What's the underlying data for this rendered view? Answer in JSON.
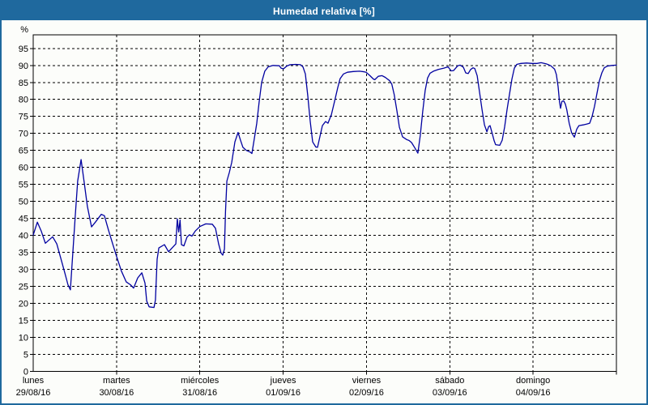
{
  "window": {
    "title": "Humedad relativa [%]"
  },
  "colors": {
    "titlebar_bg": "#1f699e",
    "window_border": "#1f699e",
    "line": "#0000a0",
    "grid": "#000000",
    "axis": "#000000",
    "page_bg": "#fcfdfa",
    "text": "#000000"
  },
  "chart_data": {
    "type": "line",
    "title": "Humedad relativa [%]",
    "ylabel": "%",
    "xlabel": "",
    "grid": true,
    "legend": null,
    "ylim": [
      0,
      99
    ],
    "xlim_hours": [
      0,
      168
    ],
    "yticks": [
      0,
      5,
      10,
      15,
      20,
      25,
      30,
      35,
      40,
      45,
      50,
      55,
      60,
      65,
      70,
      75,
      80,
      85,
      90,
      95
    ],
    "days": [
      {
        "name": "lunes",
        "date": "29/08/16"
      },
      {
        "name": "martes",
        "date": "30/08/16"
      },
      {
        "name": "miércoles",
        "date": "31/08/16"
      },
      {
        "name": "jueves",
        "date": "01/09/16"
      },
      {
        "name": "viernes",
        "date": "02/09/16"
      },
      {
        "name": "sábado",
        "date": "03/09/16"
      },
      {
        "name": "domingo",
        "date": "04/09/16"
      }
    ],
    "series": [
      {
        "name": "Humedad relativa",
        "color": "#0000a0",
        "x_unit": "hours from lunes 29/08/16 00:00",
        "points": [
          [
            0,
            40.1
          ],
          [
            1.2,
            43.9
          ],
          [
            2.3,
            41.3
          ],
          [
            3.5,
            37.7
          ],
          [
            5.6,
            39.6
          ],
          [
            6.8,
            37.5
          ],
          [
            7.9,
            33.4
          ],
          [
            9.1,
            29
          ],
          [
            10,
            25.5
          ],
          [
            10.7,
            24
          ],
          [
            12.1,
            45.7
          ],
          [
            12.8,
            56
          ],
          [
            13.8,
            62.3
          ],
          [
            14.7,
            55.5
          ],
          [
            15.6,
            48.5
          ],
          [
            16.8,
            42.5
          ],
          [
            18,
            44
          ],
          [
            19.6,
            46.2
          ],
          [
            20.5,
            45.8
          ],
          [
            21.7,
            41.5
          ],
          [
            22.9,
            37.5
          ],
          [
            24,
            33.8
          ],
          [
            25.4,
            29.5
          ],
          [
            26.8,
            26.3
          ],
          [
            28,
            25.5
          ],
          [
            28.9,
            24.5
          ],
          [
            30.1,
            27.5
          ],
          [
            31.3,
            29
          ],
          [
            32.2,
            26
          ],
          [
            32.7,
            20.7
          ],
          [
            33.4,
            19
          ],
          [
            34.8,
            18.8
          ],
          [
            35.2,
            21
          ],
          [
            35.7,
            33
          ],
          [
            36.2,
            36.3
          ],
          [
            37.8,
            37.3
          ],
          [
            39,
            35.2
          ],
          [
            39.9,
            36.2
          ],
          [
            41.1,
            37.5
          ],
          [
            41.5,
            44.9
          ],
          [
            41.9,
            41
          ],
          [
            42.3,
            44.5
          ],
          [
            42.7,
            37.3
          ],
          [
            43.4,
            36.9
          ],
          [
            44.3,
            39.5
          ],
          [
            45,
            40.2
          ],
          [
            45.7,
            39.8
          ],
          [
            46.7,
            41.3
          ],
          [
            48,
            42.6
          ],
          [
            49.7,
            43.4
          ],
          [
            51.6,
            43.3
          ],
          [
            52.5,
            42.1
          ],
          [
            53.4,
            37.5
          ],
          [
            54.1,
            34.8
          ],
          [
            54.6,
            34.2
          ],
          [
            55.1,
            36
          ],
          [
            55.4,
            47
          ],
          [
            55.8,
            56
          ],
          [
            56.5,
            58.5
          ],
          [
            57.2,
            61.5
          ],
          [
            58.1,
            67.5
          ],
          [
            59,
            70.3
          ],
          [
            59.7,
            68
          ],
          [
            60.4,
            65.9
          ],
          [
            61.4,
            65
          ],
          [
            62.5,
            64.5
          ],
          [
            63,
            64.1
          ],
          [
            63.7,
            68.5
          ],
          [
            64.4,
            73
          ],
          [
            65.1,
            79.4
          ],
          [
            65.8,
            85
          ],
          [
            66.7,
            88.3
          ],
          [
            67.7,
            89.6
          ],
          [
            69.1,
            90
          ],
          [
            70.9,
            89.9
          ],
          [
            71.4,
            89.2
          ],
          [
            72.1,
            89
          ],
          [
            73,
            89.8
          ],
          [
            74,
            90.2
          ],
          [
            75.6,
            90.3
          ],
          [
            77,
            90.2
          ],
          [
            77.7,
            89.6
          ],
          [
            78.4,
            87.5
          ],
          [
            79.1,
            81
          ],
          [
            79.8,
            73.5
          ],
          [
            80.5,
            67.5
          ],
          [
            81.4,
            66
          ],
          [
            81.9,
            65.9
          ],
          [
            83.3,
            72.3
          ],
          [
            84.2,
            73.5
          ],
          [
            84.9,
            73
          ],
          [
            85.9,
            75.5
          ],
          [
            86.8,
            79.4
          ],
          [
            87.7,
            83.4
          ],
          [
            88.4,
            86.1
          ],
          [
            89.4,
            87.5
          ],
          [
            90.5,
            88
          ],
          [
            92.2,
            88.2
          ],
          [
            94,
            88.3
          ],
          [
            95.4,
            88.1
          ],
          [
            95.9,
            88
          ],
          [
            97,
            87
          ],
          [
            98,
            86
          ],
          [
            98.4,
            85.8
          ],
          [
            99.4,
            86.8
          ],
          [
            100.5,
            87
          ],
          [
            101.4,
            86.5
          ],
          [
            102.7,
            85.5
          ],
          [
            103.3,
            84.5
          ],
          [
            104,
            81.4
          ],
          [
            104.8,
            76.5
          ],
          [
            105.5,
            71.8
          ],
          [
            106.4,
            69
          ],
          [
            107.6,
            68.2
          ],
          [
            108.3,
            67.9
          ],
          [
            109,
            67.3
          ],
          [
            109.9,
            65.8
          ],
          [
            110.8,
            64.2
          ],
          [
            111.5,
            69.5
          ],
          [
            112.2,
            76.5
          ],
          [
            112.9,
            82.6
          ],
          [
            113.6,
            86.3
          ],
          [
            114.3,
            87.7
          ],
          [
            115.3,
            88.3
          ],
          [
            116.7,
            88.8
          ],
          [
            118.3,
            89.2
          ],
          [
            119.5,
            89.6
          ],
          [
            120.4,
            88.4
          ],
          [
            121.1,
            88.5
          ],
          [
            122.3,
            89.9
          ],
          [
            123,
            90.1
          ],
          [
            123.9,
            89.5
          ],
          [
            124.6,
            87.8
          ],
          [
            125.3,
            87.6
          ],
          [
            126,
            88.8
          ],
          [
            126.7,
            89.3
          ],
          [
            127.2,
            89.1
          ],
          [
            127.9,
            87
          ],
          [
            128.6,
            82
          ],
          [
            129.3,
            77
          ],
          [
            130,
            72.5
          ],
          [
            130.7,
            70.5
          ],
          [
            131.2,
            72
          ],
          [
            131.6,
            72.3
          ],
          [
            132.1,
            70.5
          ],
          [
            132.8,
            67.8
          ],
          [
            133.2,
            66.7
          ],
          [
            134.4,
            66.5
          ],
          [
            135.1,
            68
          ],
          [
            135.8,
            71.9
          ],
          [
            136.5,
            77
          ],
          [
            137.2,
            81.5
          ],
          [
            137.9,
            86
          ],
          [
            138.6,
            89.2
          ],
          [
            139.3,
            90.3
          ],
          [
            140.5,
            90.6
          ],
          [
            142.1,
            90.7
          ],
          [
            143.7,
            90.6
          ],
          [
            145.1,
            90.6
          ],
          [
            146.3,
            90.8
          ],
          [
            147.7,
            90.5
          ],
          [
            148.2,
            90.3
          ],
          [
            149.1,
            89.9
          ],
          [
            150.2,
            88.9
          ],
          [
            150.7,
            87.3
          ],
          [
            151.2,
            83.8
          ],
          [
            151.6,
            79.4
          ],
          [
            151.9,
            77.4
          ],
          [
            152.3,
            79.4
          ],
          [
            152.8,
            79.6
          ],
          [
            153.3,
            78.6
          ],
          [
            153.7,
            77
          ],
          [
            154.4,
            73
          ],
          [
            155.1,
            70.2
          ],
          [
            155.9,
            68.9
          ],
          [
            156.6,
            71.3
          ],
          [
            157.2,
            72.3
          ],
          [
            158.4,
            72.5
          ],
          [
            159.6,
            72.8
          ],
          [
            160.3,
            73
          ],
          [
            161,
            75
          ],
          [
            161.7,
            78
          ],
          [
            162.4,
            81.8
          ],
          [
            163.1,
            85.5
          ],
          [
            163.8,
            87.8
          ],
          [
            164.5,
            89.3
          ],
          [
            165.4,
            89.8
          ],
          [
            166.6,
            90
          ],
          [
            168,
            90.1
          ]
        ]
      }
    ]
  }
}
